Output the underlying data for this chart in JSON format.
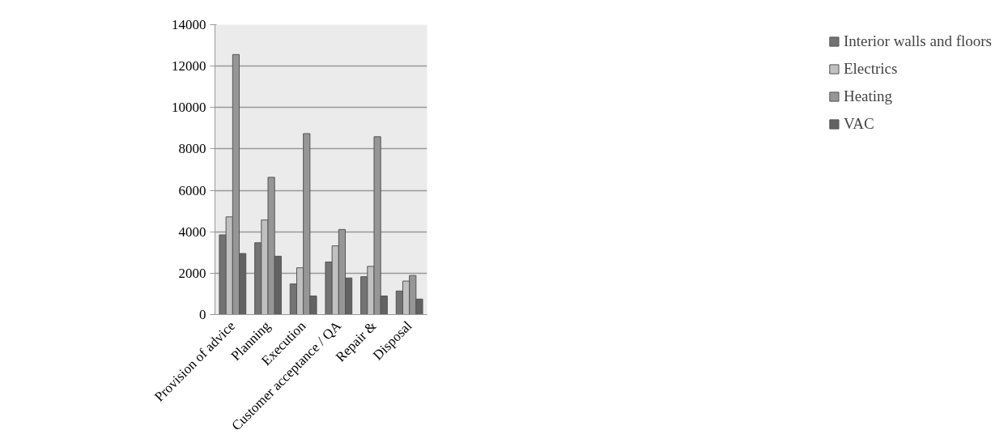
{
  "chart_data": {
    "type": "bar",
    "categories": [
      "Provision of advice",
      "Planning",
      "Execution",
      "Customer acceptance / QA",
      "Repair &",
      "Disposal"
    ],
    "series": [
      {
        "name": "Interior walls and floors",
        "color": "#737373",
        "values": [
          3850,
          3470,
          1480,
          2540,
          1830,
          1140
        ]
      },
      {
        "name": "Electrics",
        "color": "#c0c0c0",
        "values": [
          4720,
          4570,
          2260,
          3320,
          2330,
          1620
        ]
      },
      {
        "name": "Heating",
        "color": "#969696",
        "values": [
          12560,
          6630,
          8740,
          4110,
          8590,
          1890
        ]
      },
      {
        "name": "VAC",
        "color": "#626262",
        "values": [
          2950,
          2820,
          900,
          1770,
          900,
          750
        ]
      }
    ],
    "ylim": [
      0,
      14000
    ],
    "yticks": [
      0,
      2000,
      4000,
      6000,
      8000,
      10000,
      12000,
      14000
    ],
    "grid": "y",
    "legend": "right"
  }
}
